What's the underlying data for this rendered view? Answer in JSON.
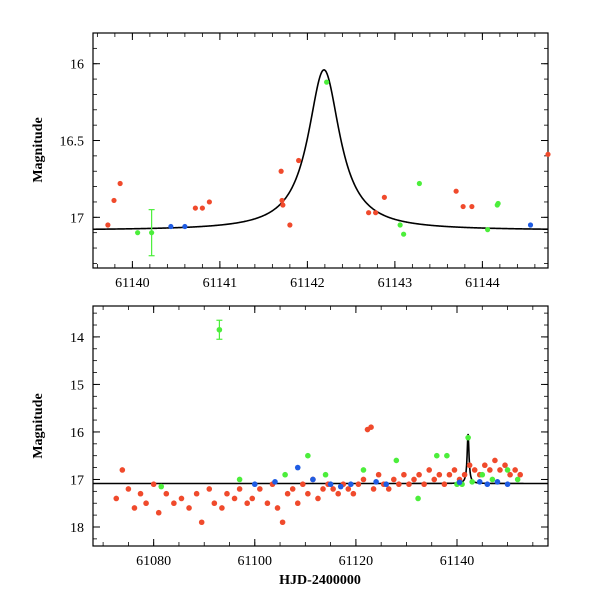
{
  "chart_data": [
    {
      "type": "scatter",
      "panel": "top",
      "title": "",
      "xlabel": "",
      "ylabel": "Magnitude",
      "xlim": [
        61139.55,
        61144.75
      ],
      "ylim": [
        17.33,
        15.8
      ],
      "y_inverted": true,
      "xticks": [
        61140,
        61141,
        61142,
        61143,
        61144
      ],
      "yticks": [
        16,
        16.5,
        17
      ],
      "ytick_labels": [
        "16",
        "16.5",
        "17"
      ],
      "series": [
        {
          "name": "red",
          "color": "#f04a2c",
          "points": [
            {
              "x": 61139.72,
              "y": 17.05
            },
            {
              "x": 61139.79,
              "y": 16.89
            },
            {
              "x": 61139.86,
              "y": 16.78
            },
            {
              "x": 61140.72,
              "y": 16.94
            },
            {
              "x": 61140.8,
              "y": 16.94
            },
            {
              "x": 61140.88,
              "y": 16.9
            },
            {
              "x": 61141.7,
              "y": 16.7
            },
            {
              "x": 61141.71,
              "y": 16.89
            },
            {
              "x": 61141.72,
              "y": 16.92
            },
            {
              "x": 61141.8,
              "y": 17.05
            },
            {
              "x": 61141.9,
              "y": 16.63
            },
            {
              "x": 61142.7,
              "y": 16.97
            },
            {
              "x": 61142.78,
              "y": 16.97
            },
            {
              "x": 61142.88,
              "y": 16.87
            },
            {
              "x": 61143.7,
              "y": 16.83
            },
            {
              "x": 61143.78,
              "y": 16.93
            },
            {
              "x": 61143.88,
              "y": 16.93
            },
            {
              "x": 61144.75,
              "y": 16.59
            }
          ]
        },
        {
          "name": "green",
          "color": "#4cee3b",
          "points": [
            {
              "x": 61140.06,
              "y": 17.1
            },
            {
              "x": 61140.22,
              "y": 17.1,
              "err": 0.15
            },
            {
              "x": 61142.22,
              "y": 16.12
            },
            {
              "x": 61143.06,
              "y": 17.05
            },
            {
              "x": 61143.1,
              "y": 17.11
            },
            {
              "x": 61143.28,
              "y": 16.78
            },
            {
              "x": 61144.06,
              "y": 17.08
            },
            {
              "x": 61144.17,
              "y": 16.92
            },
            {
              "x": 61144.18,
              "y": 16.91
            }
          ]
        },
        {
          "name": "blue",
          "color": "#1f5ce3",
          "points": [
            {
              "x": 61140.44,
              "y": 17.06
            },
            {
              "x": 61140.6,
              "y": 17.06
            },
            {
              "x": 61144.55,
              "y": 17.05
            }
          ]
        }
      ],
      "model": {
        "name": "model curve",
        "color": "#000000",
        "baseline": 17.085,
        "peak_x": 61142.19,
        "peak_mag": 16.04,
        "shape": "lorentzian",
        "width_days": 0.22
      }
    },
    {
      "type": "scatter",
      "panel": "bottom",
      "title": "",
      "xlabel": "HJD-2400000",
      "ylabel": "Magnitude",
      "xlim": [
        61068,
        61158
      ],
      "ylim": [
        18.4,
        13.35
      ],
      "y_inverted": true,
      "xticks": [
        61080,
        61100,
        61120,
        61140
      ],
      "yticks": [
        14,
        15,
        16,
        17,
        18
      ],
      "ytick_labels": [
        "14",
        "15",
        "16",
        "17",
        "18"
      ],
      "series": [
        {
          "name": "red",
          "color": "#f04a2c",
          "points": [
            {
              "x": 61072.6,
              "y": 17.4
            },
            {
              "x": 61073.8,
              "y": 16.8
            },
            {
              "x": 61075.0,
              "y": 17.2
            },
            {
              "x": 61076.2,
              "y": 17.6
            },
            {
              "x": 61077.4,
              "y": 17.3
            },
            {
              "x": 61078.5,
              "y": 17.5
            },
            {
              "x": 61080.0,
              "y": 17.1
            },
            {
              "x": 61081.0,
              "y": 17.7
            },
            {
              "x": 61082.5,
              "y": 17.3
            },
            {
              "x": 61084.0,
              "y": 17.5
            },
            {
              "x": 61085.5,
              "y": 17.4
            },
            {
              "x": 61087.0,
              "y": 17.6
            },
            {
              "x": 61088.5,
              "y": 17.3
            },
            {
              "x": 61089.5,
              "y": 17.9
            },
            {
              "x": 61091.0,
              "y": 17.2
            },
            {
              "x": 61092.0,
              "y": 17.5
            },
            {
              "x": 61093.5,
              "y": 17.6
            },
            {
              "x": 61094.5,
              "y": 17.3
            },
            {
              "x": 61096.0,
              "y": 17.4
            },
            {
              "x": 61097.0,
              "y": 17.2
            },
            {
              "x": 61098.5,
              "y": 17.5
            },
            {
              "x": 61099.5,
              "y": 17.4
            },
            {
              "x": 61101.0,
              "y": 17.2
            },
            {
              "x": 61102.5,
              "y": 17.5
            },
            {
              "x": 61103.5,
              "y": 17.1
            },
            {
              "x": 61104.5,
              "y": 17.6
            },
            {
              "x": 61105.5,
              "y": 17.9
            },
            {
              "x": 61106.5,
              "y": 17.3
            },
            {
              "x": 61107.5,
              "y": 17.2
            },
            {
              "x": 61108.5,
              "y": 17.5
            },
            {
              "x": 61109.5,
              "y": 17.1
            },
            {
              "x": 61110.5,
              "y": 17.3
            },
            {
              "x": 61111.5,
              "y": 17.0
            },
            {
              "x": 61112.5,
              "y": 17.4
            },
            {
              "x": 61113.5,
              "y": 17.2
            },
            {
              "x": 61114.5,
              "y": 17.1
            },
            {
              "x": 61115.5,
              "y": 17.2
            },
            {
              "x": 61116.5,
              "y": 17.3
            },
            {
              "x": 61117.5,
              "y": 17.1
            },
            {
              "x": 61118.5,
              "y": 17.2
            },
            {
              "x": 61119.5,
              "y": 17.3
            },
            {
              "x": 61120.5,
              "y": 17.1
            },
            {
              "x": 61121.5,
              "y": 17.0
            },
            {
              "x": 61122.3,
              "y": 15.95
            },
            {
              "x": 61123.0,
              "y": 15.9
            },
            {
              "x": 61123.5,
              "y": 17.2
            },
            {
              "x": 61124.5,
              "y": 16.9
            },
            {
              "x": 61125.5,
              "y": 17.1
            },
            {
              "x": 61126.5,
              "y": 17.2
            },
            {
              "x": 61127.5,
              "y": 17.0
            },
            {
              "x": 61128.5,
              "y": 17.1
            },
            {
              "x": 61129.5,
              "y": 16.9
            },
            {
              "x": 61130.5,
              "y": 17.1
            },
            {
              "x": 61131.5,
              "y": 17.0
            },
            {
              "x": 61132.5,
              "y": 16.9
            },
            {
              "x": 61133.5,
              "y": 17.1
            },
            {
              "x": 61134.5,
              "y": 16.8
            },
            {
              "x": 61135.5,
              "y": 17.0
            },
            {
              "x": 61136.5,
              "y": 16.9
            },
            {
              "x": 61137.5,
              "y": 17.1
            },
            {
              "x": 61138.5,
              "y": 16.9
            },
            {
              "x": 61139.5,
              "y": 16.8
            },
            {
              "x": 61140.5,
              "y": 17.0
            },
            {
              "x": 61141.5,
              "y": 16.9
            },
            {
              "x": 61142.5,
              "y": 16.7
            },
            {
              "x": 61143.5,
              "y": 16.8
            },
            {
              "x": 61144.5,
              "y": 16.9
            },
            {
              "x": 61145.5,
              "y": 16.7
            },
            {
              "x": 61146.5,
              "y": 16.8
            },
            {
              "x": 61147.5,
              "y": 16.6
            },
            {
              "x": 61148.5,
              "y": 16.8
            },
            {
              "x": 61149.5,
              "y": 16.7
            },
            {
              "x": 61150.5,
              "y": 16.9
            },
            {
              "x": 61151.5,
              "y": 16.8
            },
            {
              "x": 61152.5,
              "y": 16.9
            }
          ]
        },
        {
          "name": "green",
          "color": "#4cee3b",
          "points": [
            {
              "x": 61081.5,
              "y": 17.15
            },
            {
              "x": 61093.0,
              "y": 13.85,
              "err": 0.2
            },
            {
              "x": 61097.0,
              "y": 17.0
            },
            {
              "x": 61106.0,
              "y": 16.9
            },
            {
              "x": 61110.5,
              "y": 16.5
            },
            {
              "x": 61114.0,
              "y": 16.9
            },
            {
              "x": 61121.5,
              "y": 16.8
            },
            {
              "x": 61128.0,
              "y": 16.6
            },
            {
              "x": 61132.3,
              "y": 17.4
            },
            {
              "x": 61136.0,
              "y": 16.5
            },
            {
              "x": 61138.0,
              "y": 16.5
            },
            {
              "x": 61140.0,
              "y": 17.1
            },
            {
              "x": 61141.0,
              "y": 17.1
            },
            {
              "x": 61142.2,
              "y": 16.12
            },
            {
              "x": 61143.0,
              "y": 17.05
            },
            {
              "x": 61145.0,
              "y": 16.9
            },
            {
              "x": 61147.0,
              "y": 17.0
            },
            {
              "x": 61150.0,
              "y": 16.8
            },
            {
              "x": 61152.0,
              "y": 17.0
            }
          ]
        },
        {
          "name": "blue",
          "color": "#1f5ce3",
          "points": [
            {
              "x": 61100.0,
              "y": 17.1
            },
            {
              "x": 61104.0,
              "y": 17.05
            },
            {
              "x": 61108.5,
              "y": 16.75
            },
            {
              "x": 61111.5,
              "y": 17.0
            },
            {
              "x": 61115.0,
              "y": 17.1
            },
            {
              "x": 61117.0,
              "y": 17.15
            },
            {
              "x": 61119.0,
              "y": 17.1
            },
            {
              "x": 61124.0,
              "y": 17.05
            },
            {
              "x": 61126.0,
              "y": 17.1
            },
            {
              "x": 61140.5,
              "y": 17.06
            },
            {
              "x": 61144.5,
              "y": 17.05
            },
            {
              "x": 61146.0,
              "y": 17.1
            },
            {
              "x": 61148.0,
              "y": 17.05
            },
            {
              "x": 61150.0,
              "y": 17.1
            }
          ]
        }
      ],
      "model": {
        "name": "model curve",
        "color": "#000000",
        "baseline": 17.085,
        "peak_x": 61142.19,
        "peak_mag": 16.04,
        "shape": "lorentzian",
        "width_days": 0.22
      }
    }
  ]
}
